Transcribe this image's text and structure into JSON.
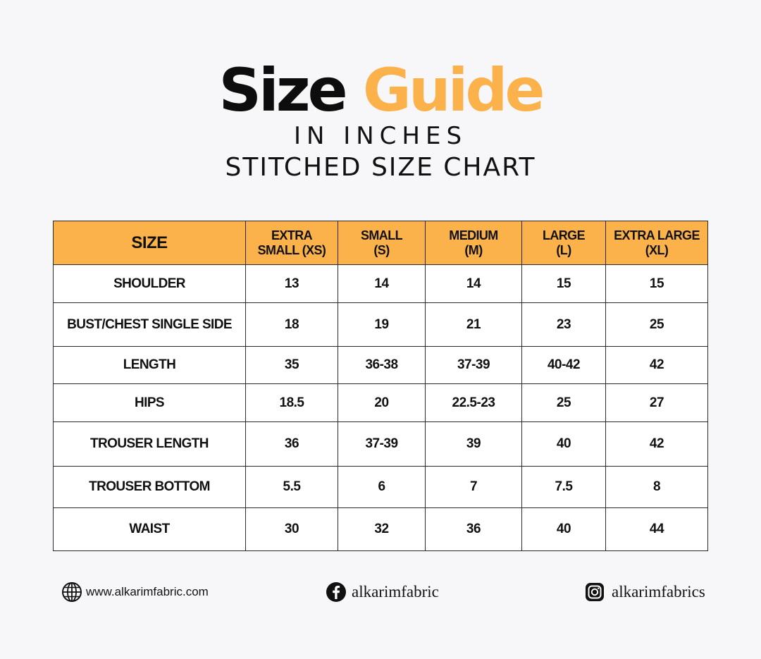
{
  "header": {
    "title_part1": "Size",
    "title_part2": "Guide",
    "subtitle1": "IN INCHES",
    "subtitle2": "STITCHED SIZE CHART"
  },
  "table": {
    "columns": [
      {
        "line1": "SIZE",
        "line2": ""
      },
      {
        "line1": "EXTRA",
        "line2": "SMALL (XS)"
      },
      {
        "line1": "SMALL",
        "line2": "(S)"
      },
      {
        "line1": "MEDIUM",
        "line2": "(M)"
      },
      {
        "line1": "LARGE",
        "line2": "(L)"
      },
      {
        "line1": "EXTRA LARGE",
        "line2": "(XL)"
      }
    ],
    "rows": [
      {
        "label": "SHOULDER",
        "values": [
          "13",
          "14",
          "14",
          "15",
          "15"
        ]
      },
      {
        "label": "BUST/CHEST SINGLE SIDE",
        "values": [
          "18",
          "19",
          "21",
          "23",
          "25"
        ]
      },
      {
        "label": "LENGTH",
        "values": [
          "35",
          "36-38",
          "37-39",
          "40-42",
          "42"
        ]
      },
      {
        "label": "HIPS",
        "values": [
          "18.5",
          "20",
          "22.5-23",
          "25",
          "27"
        ]
      },
      {
        "label": "TROUSER LENGTH",
        "values": [
          "36",
          "37-39",
          "39",
          "40",
          "42"
        ]
      },
      {
        "label": "TROUSER BOTTOM",
        "values": [
          "5.5",
          "6",
          "7",
          "7.5",
          "8"
        ]
      },
      {
        "label": "WAIST",
        "values": [
          "30",
          "32",
          "36",
          "40",
          "44"
        ]
      }
    ]
  },
  "footer": {
    "website": "www.alkarimfabric.com",
    "facebook": "alkarimfabric",
    "instagram": "alkarimfabrics",
    "icons": {
      "website": "globe-icon",
      "facebook": "facebook-icon",
      "instagram": "instagram-icon"
    }
  },
  "colors": {
    "accent": "#fbb24b",
    "title_dark": "#0d0d0d",
    "background": "#f7f7f9"
  }
}
